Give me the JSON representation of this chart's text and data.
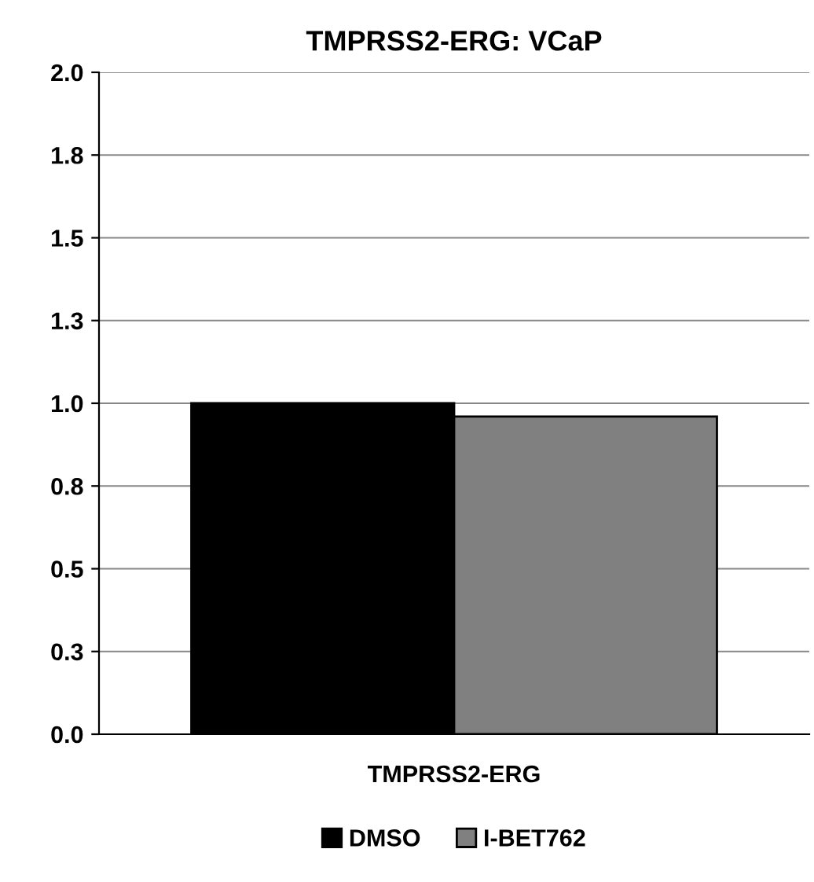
{
  "chart_data": {
    "type": "bar",
    "title": "TMPRSS2-ERG: VCaP",
    "categories": [
      "TMPRSS2-ERG"
    ],
    "series": [
      {
        "name": "DMSO",
        "color": "#000000",
        "values": [
          1.0
        ]
      },
      {
        "name": "I-BET762",
        "color": "#808080",
        "values": [
          0.96
        ]
      }
    ],
    "ylim": [
      0,
      2
    ],
    "yticks": [
      {
        "value": 0,
        "label": "0.0"
      },
      {
        "value": 0.25,
        "label": "0.3"
      },
      {
        "value": 0.5,
        "label": "0.5"
      },
      {
        "value": 0.75,
        "label": "0.8"
      },
      {
        "value": 1,
        "label": "1.0"
      },
      {
        "value": 1.25,
        "label": "1.3"
      },
      {
        "value": 1.5,
        "label": "1.5"
      },
      {
        "value": 1.75,
        "label": "1.8"
      },
      {
        "value": 2,
        "label": "2.0"
      }
    ],
    "grid": "y",
    "legend": "bottom"
  }
}
